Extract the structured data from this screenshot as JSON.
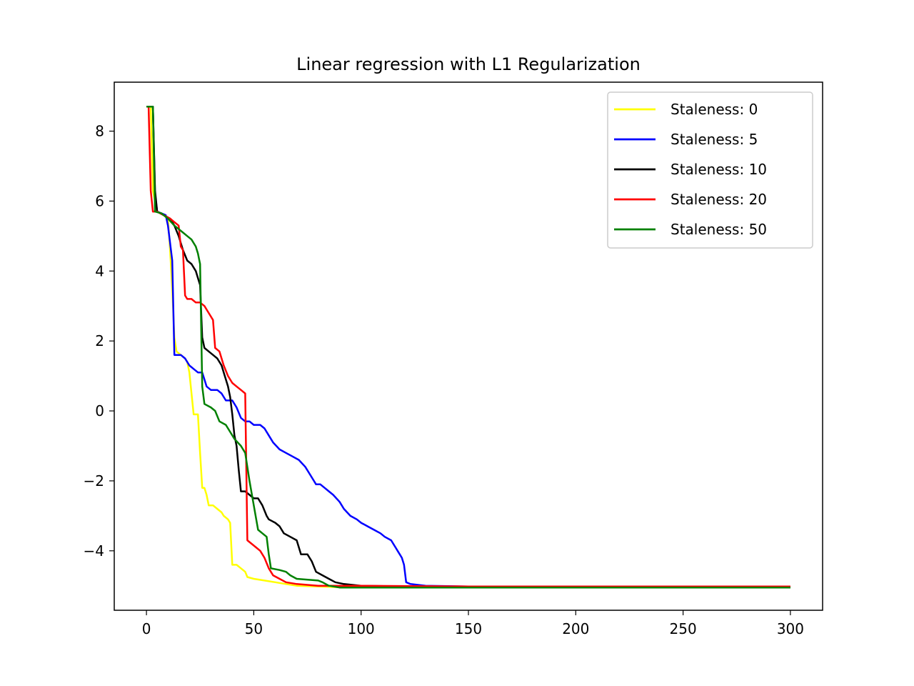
{
  "chart_data": {
    "type": "line",
    "title": "Linear regression with L1 Regularization",
    "xlabel": "",
    "ylabel": "",
    "xlim": [
      -15,
      315
    ],
    "ylim": [
      -5.7,
      9.4
    ],
    "x_ticks": [
      0,
      50,
      100,
      150,
      200,
      250,
      300
    ],
    "x_tick_labels": [
      "0",
      "50",
      "100",
      "150",
      "200",
      "250",
      "300"
    ],
    "y_ticks": [
      -4,
      -2,
      0,
      2,
      4,
      6,
      8
    ],
    "y_tick_labels": [
      "−4",
      "−2",
      "0",
      "2",
      "4",
      "6",
      "8"
    ],
    "grid": false,
    "legend_position": "upper right",
    "series": [
      {
        "name": "Staleness: 0",
        "color": "#ffff00",
        "points": [
          [
            0,
            8.7
          ],
          [
            2,
            8.7
          ],
          [
            3,
            6.3
          ],
          [
            5,
            5.7
          ],
          [
            8,
            5.6
          ],
          [
            10,
            5.5
          ],
          [
            11,
            4.6
          ],
          [
            12,
            3.5
          ],
          [
            13,
            2.1
          ],
          [
            14,
            1.7
          ],
          [
            16,
            1.6
          ],
          [
            18,
            1.5
          ],
          [
            19,
            1.4
          ],
          [
            20,
            1.1
          ],
          [
            21,
            0.5
          ],
          [
            22,
            -0.1
          ],
          [
            24,
            -0.1
          ],
          [
            25,
            -1.2
          ],
          [
            26,
            -2.2
          ],
          [
            27,
            -2.2
          ],
          [
            28,
            -2.4
          ],
          [
            29,
            -2.7
          ],
          [
            31,
            -2.7
          ],
          [
            33,
            -2.8
          ],
          [
            35,
            -2.9
          ],
          [
            36,
            -3.0
          ],
          [
            38,
            -3.1
          ],
          [
            39,
            -3.2
          ],
          [
            40,
            -4.4
          ],
          [
            42,
            -4.4
          ],
          [
            44,
            -4.5
          ],
          [
            46,
            -4.6
          ],
          [
            47,
            -4.75
          ],
          [
            50,
            -4.8
          ],
          [
            55,
            -4.85
          ],
          [
            60,
            -4.9
          ],
          [
            65,
            -4.95
          ],
          [
            70,
            -5.0
          ],
          [
            80,
            -5.02
          ],
          [
            90,
            -5.04
          ],
          [
            100,
            -5.05
          ],
          [
            150,
            -5.05
          ],
          [
            200,
            -5.05
          ],
          [
            300,
            -5.05
          ]
        ]
      },
      {
        "name": "Staleness: 5",
        "color": "#0000ff",
        "points": [
          [
            0,
            8.7
          ],
          [
            3,
            8.7
          ],
          [
            4,
            6.2
          ],
          [
            5,
            5.7
          ],
          [
            7,
            5.65
          ],
          [
            9,
            5.6
          ],
          [
            10,
            5.3
          ],
          [
            11,
            4.8
          ],
          [
            12,
            4.3
          ],
          [
            13,
            1.6
          ],
          [
            16,
            1.6
          ],
          [
            18,
            1.5
          ],
          [
            20,
            1.3
          ],
          [
            22,
            1.2
          ],
          [
            24,
            1.1
          ],
          [
            26,
            1.1
          ],
          [
            27,
            0.9
          ],
          [
            28,
            0.7
          ],
          [
            30,
            0.6
          ],
          [
            33,
            0.6
          ],
          [
            35,
            0.5
          ],
          [
            37,
            0.3
          ],
          [
            40,
            0.3
          ],
          [
            42,
            0.1
          ],
          [
            44,
            -0.2
          ],
          [
            46,
            -0.3
          ],
          [
            48,
            -0.3
          ],
          [
            50,
            -0.4
          ],
          [
            53,
            -0.4
          ],
          [
            55,
            -0.5
          ],
          [
            57,
            -0.7
          ],
          [
            59,
            -0.9
          ],
          [
            62,
            -1.1
          ],
          [
            65,
            -1.2
          ],
          [
            68,
            -1.3
          ],
          [
            71,
            -1.4
          ],
          [
            74,
            -1.6
          ],
          [
            76,
            -1.8
          ],
          [
            78,
            -2.0
          ],
          [
            79,
            -2.1
          ],
          [
            81,
            -2.1
          ],
          [
            83,
            -2.2
          ],
          [
            85,
            -2.3
          ],
          [
            87,
            -2.4
          ],
          [
            90,
            -2.6
          ],
          [
            92,
            -2.8
          ],
          [
            95,
            -3.0
          ],
          [
            98,
            -3.1
          ],
          [
            100,
            -3.2
          ],
          [
            103,
            -3.3
          ],
          [
            106,
            -3.4
          ],
          [
            109,
            -3.5
          ],
          [
            111,
            -3.6
          ],
          [
            114,
            -3.7
          ],
          [
            116,
            -3.9
          ],
          [
            117,
            -4.0
          ],
          [
            118,
            -4.1
          ],
          [
            119,
            -4.2
          ],
          [
            120,
            -4.4
          ],
          [
            121,
            -4.9
          ],
          [
            123,
            -4.95
          ],
          [
            130,
            -5.0
          ],
          [
            150,
            -5.02
          ],
          [
            200,
            -5.03
          ],
          [
            300,
            -5.03
          ]
        ]
      },
      {
        "name": "Staleness: 10",
        "color": "#000000",
        "points": [
          [
            0,
            8.7
          ],
          [
            3,
            8.7
          ],
          [
            4,
            6.3
          ],
          [
            5,
            5.7
          ],
          [
            8,
            5.6
          ],
          [
            11,
            5.5
          ],
          [
            13,
            5.3
          ],
          [
            15,
            5.0
          ],
          [
            17,
            4.6
          ],
          [
            19,
            4.3
          ],
          [
            21,
            4.2
          ],
          [
            23,
            4.0
          ],
          [
            24,
            3.8
          ],
          [
            25,
            3.6
          ],
          [
            26,
            2.1
          ],
          [
            27,
            1.8
          ],
          [
            29,
            1.7
          ],
          [
            31,
            1.6
          ],
          [
            33,
            1.5
          ],
          [
            35,
            1.3
          ],
          [
            36,
            1.1
          ],
          [
            37,
            0.9
          ],
          [
            38,
            0.7
          ],
          [
            39,
            0.4
          ],
          [
            40,
            -0.1
          ],
          [
            41,
            -0.7
          ],
          [
            42,
            -1.0
          ],
          [
            43,
            -1.7
          ],
          [
            44,
            -2.3
          ],
          [
            46,
            -2.3
          ],
          [
            48,
            -2.4
          ],
          [
            50,
            -2.5
          ],
          [
            52,
            -2.5
          ],
          [
            54,
            -2.7
          ],
          [
            56,
            -3.0
          ],
          [
            57,
            -3.1
          ],
          [
            60,
            -3.2
          ],
          [
            62,
            -3.3
          ],
          [
            64,
            -3.5
          ],
          [
            67,
            -3.6
          ],
          [
            70,
            -3.7
          ],
          [
            71,
            -3.9
          ],
          [
            72,
            -4.1
          ],
          [
            75,
            -4.1
          ],
          [
            77,
            -4.3
          ],
          [
            79,
            -4.6
          ],
          [
            82,
            -4.7
          ],
          [
            85,
            -4.8
          ],
          [
            88,
            -4.9
          ],
          [
            92,
            -4.95
          ],
          [
            100,
            -5.0
          ],
          [
            120,
            -5.02
          ],
          [
            150,
            -5.03
          ],
          [
            200,
            -5.03
          ],
          [
            300,
            -5.03
          ]
        ]
      },
      {
        "name": "Staleness: 20",
        "color": "#ff0000",
        "points": [
          [
            0,
            8.7
          ],
          [
            1,
            8.7
          ],
          [
            2,
            6.3
          ],
          [
            3,
            5.7
          ],
          [
            5,
            5.7
          ],
          [
            8,
            5.6
          ],
          [
            11,
            5.5
          ],
          [
            13,
            5.4
          ],
          [
            15,
            5.3
          ],
          [
            16,
            4.7
          ],
          [
            17,
            4.6
          ],
          [
            18,
            3.3
          ],
          [
            19,
            3.2
          ],
          [
            21,
            3.2
          ],
          [
            23,
            3.1
          ],
          [
            25,
            3.1
          ],
          [
            27,
            3.0
          ],
          [
            28,
            2.9
          ],
          [
            30,
            2.7
          ],
          [
            31,
            2.6
          ],
          [
            32,
            1.8
          ],
          [
            34,
            1.7
          ],
          [
            36,
            1.3
          ],
          [
            38,
            1.0
          ],
          [
            40,
            0.8
          ],
          [
            42,
            0.7
          ],
          [
            44,
            0.6
          ],
          [
            46,
            0.5
          ],
          [
            47,
            -3.7
          ],
          [
            49,
            -3.8
          ],
          [
            51,
            -3.9
          ],
          [
            53,
            -4.0
          ],
          [
            55,
            -4.2
          ],
          [
            57,
            -4.5
          ],
          [
            59,
            -4.7
          ],
          [
            62,
            -4.8
          ],
          [
            65,
            -4.9
          ],
          [
            70,
            -4.95
          ],
          [
            80,
            -5.0
          ],
          [
            100,
            -5.0
          ],
          [
            150,
            -5.02
          ],
          [
            200,
            -5.02
          ],
          [
            300,
            -5.02
          ]
        ]
      },
      {
        "name": "Staleness: 50",
        "color": "#008000",
        "points": [
          [
            0,
            8.7
          ],
          [
            1,
            8.7
          ],
          [
            3,
            8.7
          ],
          [
            4,
            5.7
          ],
          [
            7,
            5.65
          ],
          [
            10,
            5.5
          ],
          [
            13,
            5.3
          ],
          [
            15,
            5.2
          ],
          [
            17,
            5.1
          ],
          [
            19,
            5.0
          ],
          [
            21,
            4.9
          ],
          [
            23,
            4.7
          ],
          [
            24,
            4.5
          ],
          [
            25,
            4.2
          ],
          [
            26,
            0.7
          ],
          [
            27,
            0.2
          ],
          [
            30,
            0.1
          ],
          [
            32,
            0.0
          ],
          [
            34,
            -0.3
          ],
          [
            37,
            -0.4
          ],
          [
            39,
            -0.6
          ],
          [
            41,
            -0.8
          ],
          [
            44,
            -1.0
          ],
          [
            46,
            -1.2
          ],
          [
            48,
            -2.0
          ],
          [
            50,
            -2.7
          ],
          [
            52,
            -3.4
          ],
          [
            54,
            -3.5
          ],
          [
            56,
            -3.6
          ],
          [
            57,
            -4.1
          ],
          [
            58,
            -4.5
          ],
          [
            62,
            -4.55
          ],
          [
            65,
            -4.6
          ],
          [
            67,
            -4.7
          ],
          [
            70,
            -4.8
          ],
          [
            80,
            -4.85
          ],
          [
            82,
            -4.9
          ],
          [
            85,
            -5.0
          ],
          [
            90,
            -5.05
          ],
          [
            150,
            -5.05
          ],
          [
            200,
            -5.05
          ],
          [
            300,
            -5.05
          ]
        ]
      }
    ]
  }
}
